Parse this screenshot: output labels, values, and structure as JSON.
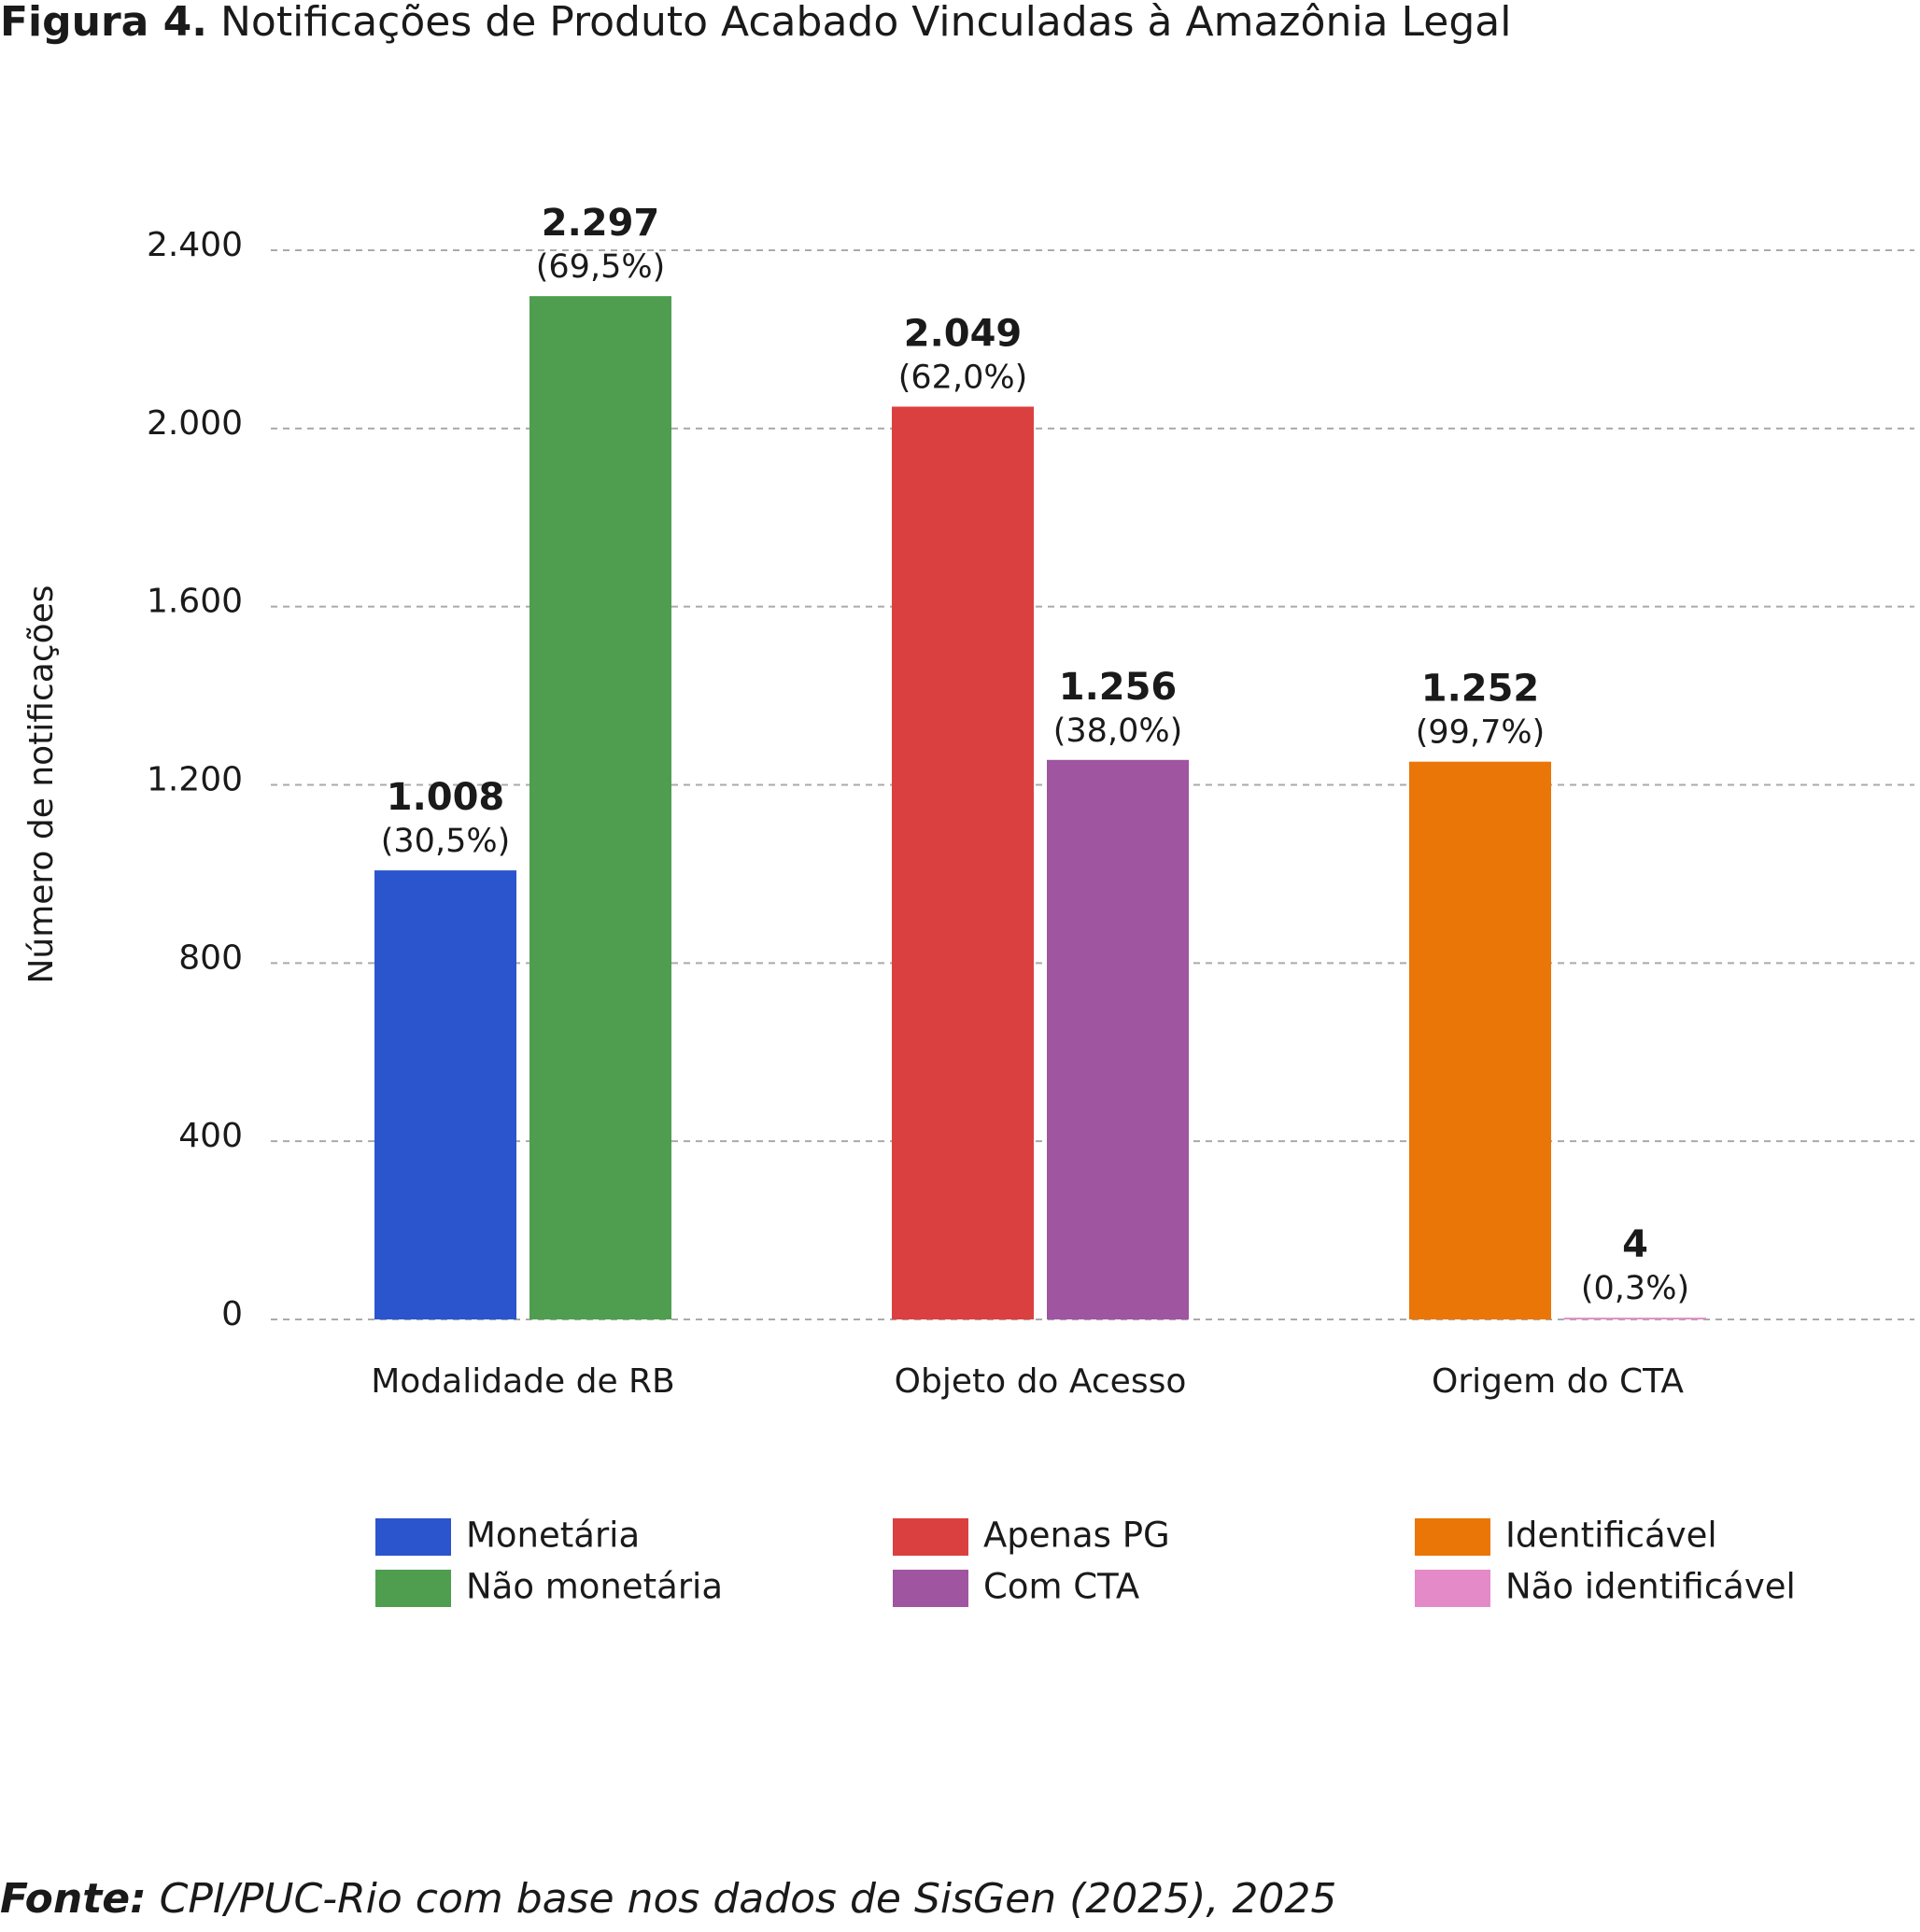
{
  "chart_data": {
    "type": "grouped_bar",
    "figure_label": "Figura 4.",
    "title": "Notificações de Produto Acabado Vinculadas à Amazônia Legal",
    "y_label": "Número de notificações",
    "source_label": "Fonte:",
    "source": "CPI/PUC-Rio com base nos dados de SisGen (2025), 2025",
    "categories": [
      "Modalidade de RB",
      "Objeto do Acesso",
      "Origem do CTA"
    ],
    "series": [
      {
        "name": "Monetária",
        "color": "#2b55cc",
        "values": [
          1008,
          null,
          null
        ],
        "value_labels": [
          "1.008",
          null,
          null
        ],
        "share_labels": [
          "(30,5%)",
          null,
          null
        ]
      },
      {
        "name": "Não monetária",
        "color": "#4f9e4f",
        "values": [
          2297,
          null,
          null
        ],
        "value_labels": [
          "2.297",
          null,
          null
        ],
        "share_labels": [
          "(69,5%)",
          null,
          null
        ]
      },
      {
        "name": "Apenas PG",
        "color": "#db4040",
        "values": [
          null,
          2049,
          null
        ],
        "value_labels": [
          null,
          "2.049",
          null
        ],
        "share_labels": [
          null,
          "(62,0%)",
          null
        ]
      },
      {
        "name": "Com CTA",
        "color": "#9f55a0",
        "values": [
          null,
          1256,
          null
        ],
        "value_labels": [
          null,
          "1.256",
          null
        ],
        "share_labels": [
          null,
          "(38,0%)",
          null
        ]
      },
      {
        "name": "Identificável",
        "color": "#ea7607",
        "values": [
          null,
          null,
          1252
        ],
        "value_labels": [
          null,
          null,
          "1.252"
        ],
        "share_labels": [
          null,
          null,
          "(99,7%)"
        ]
      },
      {
        "name": "Não identificável",
        "color": "#e48ac9",
        "values": [
          null,
          null,
          4
        ],
        "share_labels": [
          null,
          null,
          "(0,3%)"
        ]
      }
    ],
    "ylim": [
      0,
      2400
    ],
    "yticks": [
      0,
      400,
      800,
      {
        "value": 1200,
        "label": "1.200"
      },
      {
        "value": 1600,
        "label": "1.600"
      },
      {
        "value": 2000,
        "label": "2.000"
      },
      {
        "value": 2400,
        "label": "2.400"
      }
    ],
    "grid": true
  }
}
